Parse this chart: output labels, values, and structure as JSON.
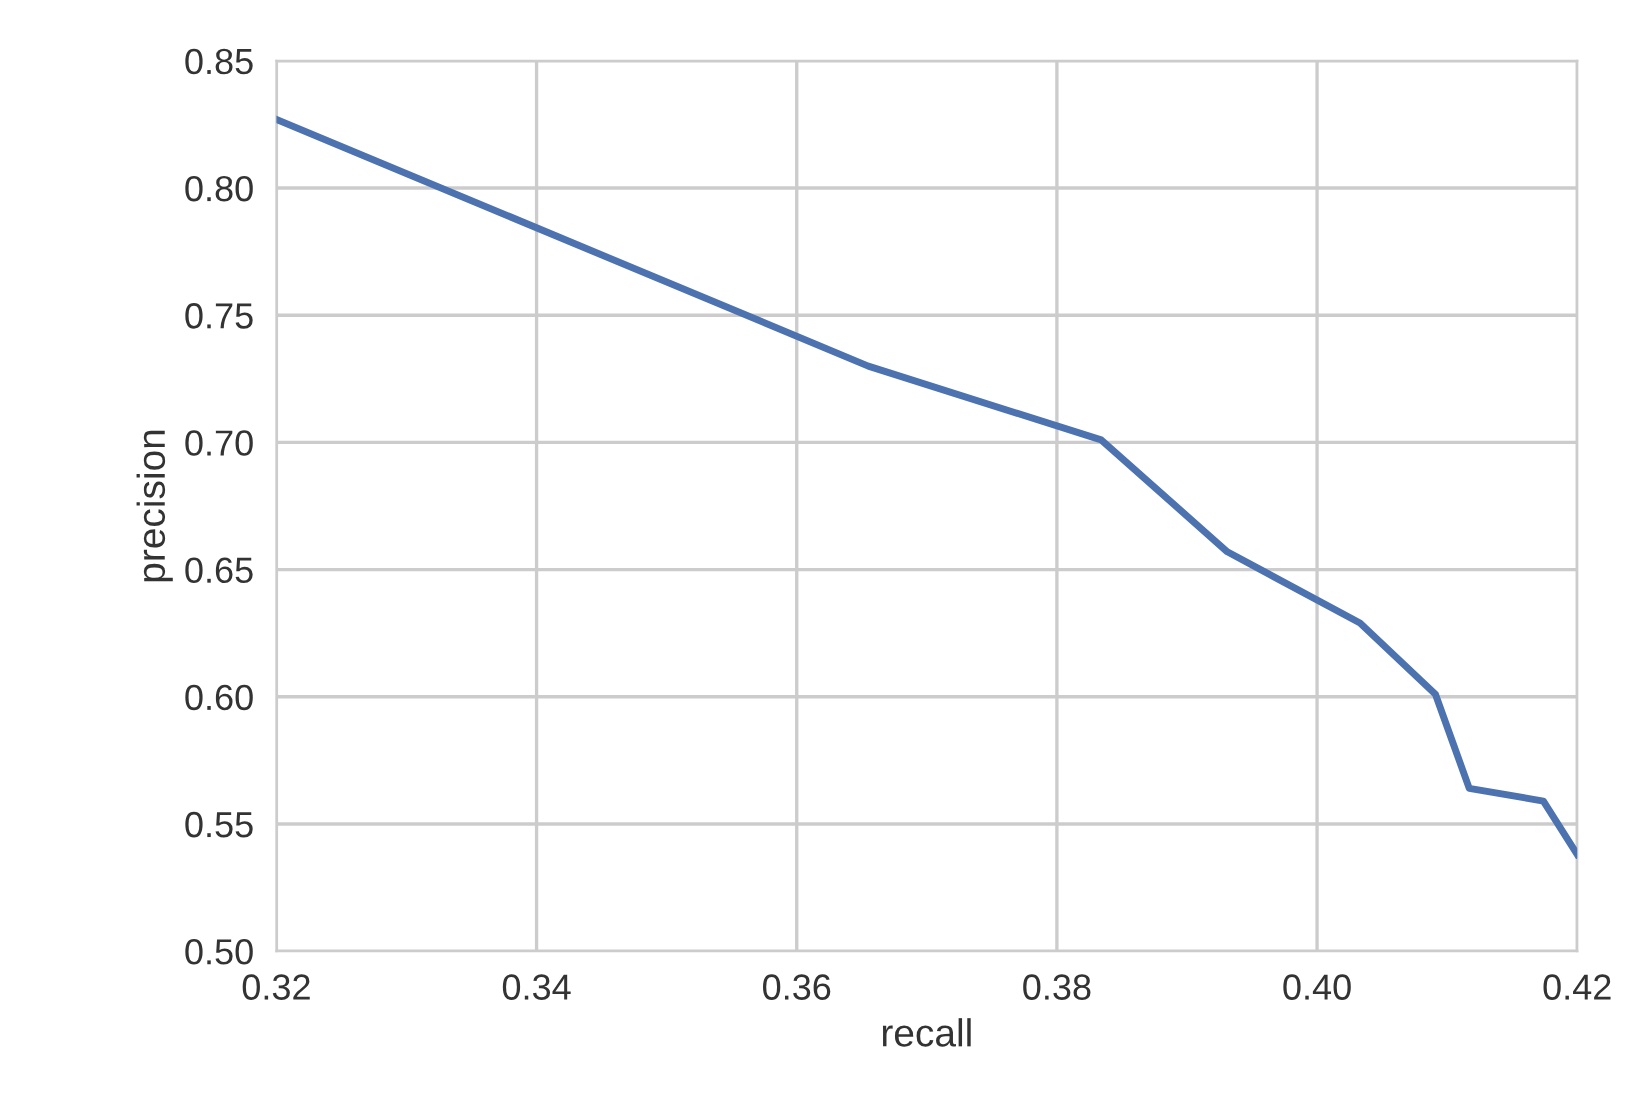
{
  "chart_data": {
    "type": "line",
    "xlabel": "recall",
    "ylabel": "precision",
    "series": [
      {
        "color": "#4c72b0",
        "x": [
          0.32,
          0.3655,
          0.3834,
          0.3931,
          0.4033,
          0.4091,
          0.4117,
          0.4174,
          0.42
        ],
        "values": [
          0.827,
          0.73,
          0.701,
          0.657,
          0.629,
          0.601,
          0.564,
          0.559,
          0.538
        ]
      }
    ],
    "xlim": [
      0.32,
      0.42
    ],
    "xticks": [
      {
        "value": 0.32,
        "label": "0.32"
      },
      {
        "value": 0.34,
        "label": "0.34"
      },
      {
        "value": 0.36,
        "label": "0.36"
      },
      {
        "value": 0.38,
        "label": "0.38"
      },
      {
        "value": 0.4,
        "label": "0.40"
      },
      {
        "value": 0.42,
        "label": "0.42"
      }
    ],
    "ylim": [
      0.5,
      0.85
    ],
    "yticks": [
      {
        "value": 0.5,
        "label": "0.50"
      },
      {
        "value": 0.55,
        "label": "0.55"
      },
      {
        "value": 0.6,
        "label": "0.60"
      },
      {
        "value": 0.65,
        "label": "0.65"
      },
      {
        "value": 0.7,
        "label": "0.70"
      },
      {
        "value": 0.75,
        "label": "0.75"
      },
      {
        "value": 0.8,
        "label": "0.80"
      },
      {
        "value": 0.85,
        "label": "0.85"
      }
    ],
    "grid": true
  }
}
